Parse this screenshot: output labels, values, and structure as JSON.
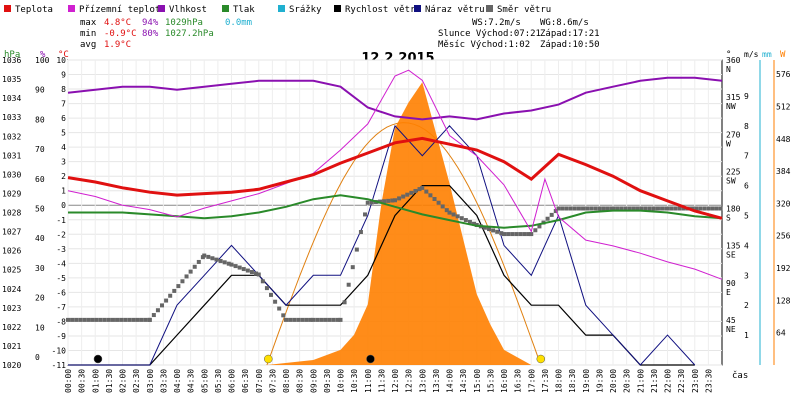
{
  "legend": [
    {
      "label": "Teplota",
      "color": "#e01010"
    },
    {
      "label": "Přízemní teplota",
      "color": "#d020d0"
    },
    {
      "label": "Vlhkost",
      "color": "#8a10b0"
    },
    {
      "label": "Tlak",
      "color": "#2a8a2a"
    },
    {
      "label": "Srážky",
      "color": "#20b0d0"
    },
    {
      "label": "Rychlost větru",
      "color": "#000000"
    },
    {
      "label": "Náraz větru",
      "color": "#101080"
    },
    {
      "label": "Směr větru",
      "color": "#666666"
    }
  ],
  "stats": {
    "max_label": "max",
    "min_label": "min",
    "avg_label": "avg",
    "max_temp": "4.8°C",
    "min_temp": "-0.9°C",
    "avg_temp": "1.9°C",
    "max_hum": "94%",
    "min_hum": "80%",
    "max_press": "1029hPa",
    "min_press": "1027.2hPa",
    "rain": "0.0mm",
    "ws": "WS:7.2m/s",
    "wg": "WG:8.6m/s",
    "sun": "Slunce Východ:07:21",
    "sun_set": "Západ:17:21",
    "moon": "Měsíc  Východ:1:02",
    "moon_set": "Západ:10:50"
  },
  "title": "12.2.2015",
  "axis_units": {
    "hpa": "hPa",
    "pct": "%",
    "degc": "°C",
    "deg": "°",
    "ms": "m/s",
    "mm": "mm",
    "w": "W",
    "cas": "čas"
  },
  "colors": {
    "temp": "#e01010",
    "ground": "#d020d0",
    "hum": "#8a10b0",
    "press": "#2a8a2a",
    "rain": "#20b0d0",
    "wind": "#000000",
    "gust": "#101080",
    "dir": "#666666",
    "solar": "#ff7f00",
    "solar_curve": "#e08010"
  },
  "chart_data": {
    "type": "line",
    "title": "12.2.2015",
    "x_ticks": [
      "00:00",
      "00:30",
      "01:00",
      "01:30",
      "02:00",
      "02:30",
      "03:00",
      "03:30",
      "04:00",
      "04:30",
      "05:00",
      "05:30",
      "06:00",
      "06:30",
      "07:00",
      "07:30",
      "08:00",
      "08:30",
      "09:00",
      "09:30",
      "10:00",
      "10:30",
      "11:00",
      "11:30",
      "12:00",
      "12:30",
      "13:00",
      "13:30",
      "14:00",
      "14:30",
      "15:00",
      "15:30",
      "16:00",
      "16:30",
      "17:00",
      "17:30",
      "18:00",
      "18:30",
      "19:00",
      "19:30",
      "20:00",
      "20:30",
      "21:00",
      "21:30",
      "22:00",
      "22:30",
      "23:00",
      "23:30"
    ],
    "y_ticks": {
      "pressure_hpa": [
        1036,
        1035,
        1034,
        1033,
        1032,
        1031,
        1030,
        1029,
        1028,
        1027,
        1026,
        1025,
        1024,
        1023,
        1022,
        1021,
        1020
      ],
      "humidity_pct": [
        100,
        90,
        80,
        70,
        60,
        50,
        40,
        30,
        20,
        10,
        0
      ],
      "temperature_c": [
        10,
        9,
        8,
        7,
        6,
        5,
        4,
        3,
        2,
        1,
        0,
        -1,
        -2,
        -3,
        -4,
        -5,
        -6,
        -7,
        -8,
        -9,
        -10,
        -11
      ],
      "direction_deg": [
        "360",
        "315",
        "270",
        "225",
        "180",
        "135",
        "90",
        "45"
      ],
      "direction_label": [
        "N",
        "NW",
        "W",
        "SW",
        "S",
        "SE",
        "E",
        "NE"
      ],
      "wind_ms": [
        "9",
        "8",
        "7",
        "6",
        "5",
        "4",
        "3",
        "2",
        "1"
      ],
      "solar_w": [
        576,
        512,
        448,
        384,
        320,
        256,
        192,
        128,
        64
      ]
    },
    "ylim_temp": [
      -11,
      10
    ],
    "series": [
      {
        "name": "Teplota",
        "unit": "°C",
        "x_hours": [
          0,
          1,
          2,
          3,
          4,
          5,
          6,
          7,
          8,
          9,
          10,
          11,
          12,
          13,
          14,
          15,
          16,
          17,
          18,
          19,
          20,
          21,
          22,
          23,
          24
        ],
        "values": [
          1.9,
          1.6,
          1.2,
          0.9,
          0.7,
          0.8,
          0.9,
          1.1,
          1.6,
          2.1,
          2.9,
          3.6,
          4.3,
          4.6,
          4.2,
          3.8,
          3.0,
          1.8,
          3.5,
          2.8,
          2.0,
          1.0,
          0.3,
          -0.4,
          -0.9
        ]
      },
      {
        "name": "Přízemní teplota",
        "unit": "°C",
        "x_hours": [
          0,
          1,
          2,
          3,
          4,
          5,
          6,
          7,
          8,
          9,
          10,
          11,
          12,
          12.5,
          13,
          14,
          15,
          16,
          17,
          17.5,
          18,
          19,
          20,
          21,
          22,
          23,
          24
        ],
        "values": [
          1.0,
          0.6,
          0.0,
          -0.3,
          -0.8,
          -0.2,
          0.3,
          0.8,
          1.5,
          2.2,
          3.8,
          5.6,
          8.9,
          9.3,
          8.6,
          4.8,
          3.4,
          1.4,
          -1.8,
          1.8,
          -0.8,
          -2.4,
          -2.8,
          -3.3,
          -3.9,
          -4.4,
          -5.1
        ]
      },
      {
        "name": "Vlhkost",
        "unit": "%",
        "x_hours": [
          0,
          1,
          2,
          3,
          4,
          5,
          6,
          7,
          8,
          9,
          10,
          11,
          12,
          13,
          14,
          15,
          16,
          17,
          18,
          19,
          20,
          21,
          22,
          23,
          24
        ],
        "values": [
          89,
          90,
          91,
          91,
          90,
          91,
          92,
          93,
          93,
          93,
          91,
          84,
          81,
          80,
          81,
          80,
          82,
          83,
          85,
          89,
          91,
          93,
          94,
          94,
          93
        ]
      },
      {
        "name": "Tlak",
        "unit": "hPa",
        "x_hours": [
          0,
          1,
          2,
          3,
          4,
          5,
          6,
          7,
          8,
          9,
          10,
          11,
          12,
          13,
          14,
          15,
          16,
          17,
          18,
          19,
          20,
          21,
          22,
          23,
          24
        ],
        "values": [
          1028,
          1028,
          1028,
          1027.9,
          1027.8,
          1027.7,
          1027.8,
          1028,
          1028.3,
          1028.7,
          1028.9,
          1028.7,
          1028.3,
          1027.9,
          1027.6,
          1027.3,
          1027.2,
          1027.3,
          1027.6,
          1028,
          1028.1,
          1028.1,
          1028,
          1027.8,
          1027.7
        ]
      },
      {
        "name": "Rychlost větru",
        "unit": "m/s",
        "x_hours": [
          0,
          3,
          4,
          5,
          6,
          7,
          8,
          9,
          10,
          11,
          12,
          13,
          14,
          15,
          16,
          17,
          18,
          19,
          20,
          21,
          22,
          23
        ],
        "values": [
          0,
          0,
          1,
          2,
          3,
          3,
          2,
          2,
          2,
          3,
          5,
          6,
          6,
          5,
          3,
          2,
          2,
          1,
          1,
          0,
          0,
          0
        ]
      },
      {
        "name": "Náraz větru",
        "unit": "m/s",
        "x_hours": [
          0,
          3,
          4,
          5,
          6,
          7,
          8,
          9,
          10,
          11,
          12,
          13,
          14,
          15,
          16,
          17,
          18,
          19,
          20,
          21,
          22,
          23
        ],
        "values": [
          0,
          0,
          2,
          3,
          4,
          3,
          2,
          3,
          3,
          5,
          8,
          7,
          8,
          7,
          4,
          3,
          5,
          2,
          1,
          0,
          1,
          0
        ]
      },
      {
        "name": "Směr větru",
        "unit": "°",
        "x_hours": [
          0,
          3,
          5,
          6,
          7,
          8,
          9,
          10,
          11,
          12,
          13,
          14,
          15,
          16,
          17,
          18,
          20,
          22,
          24
        ],
        "values": [
          45,
          45,
          123,
          112,
          100,
          45,
          45,
          45,
          187,
          190,
          205,
          175,
          160,
          149,
          149,
          180,
          180,
          180,
          180
        ]
      },
      {
        "name": "Solar",
        "unit": "W",
        "x_hours": [
          7.3,
          9,
          10,
          10.5,
          11,
          11.5,
          12,
          12.5,
          13,
          13.5,
          14,
          14.5,
          15,
          15.5,
          16,
          17
        ],
        "values": [
          0,
          10,
          30,
          60,
          120,
          320,
          470,
          520,
          560,
          460,
          360,
          250,
          140,
          80,
          30,
          0
        ]
      }
    ]
  }
}
